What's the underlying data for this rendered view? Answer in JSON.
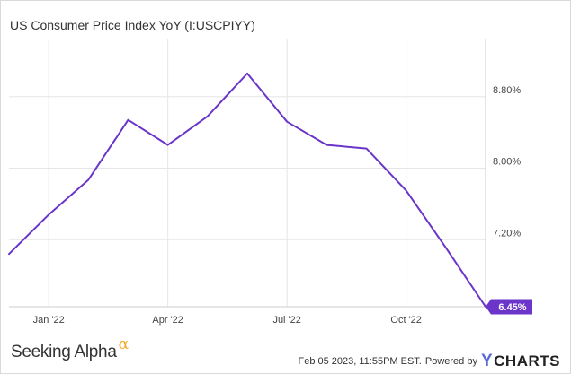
{
  "chart_data": {
    "type": "line",
    "title": "US Consumer Price Index YoY (I:USCPIYY)",
    "x": [
      "2021-12",
      "2022-01",
      "2022-02",
      "2022-03",
      "2022-04",
      "2022-05",
      "2022-06",
      "2022-07",
      "2022-08",
      "2022-09",
      "2022-10",
      "2022-11",
      "2022-12"
    ],
    "x_tick_labels": [
      {
        "x": "2022-01",
        "label": "Jan '22"
      },
      {
        "x": "2022-04",
        "label": "Apr '22"
      },
      {
        "x": "2022-07",
        "label": "Jul '22"
      },
      {
        "x": "2022-10",
        "label": "Oct '22"
      }
    ],
    "series": [
      {
        "values": [
          7.04,
          7.48,
          7.87,
          8.54,
          8.26,
          8.58,
          9.06,
          8.52,
          8.26,
          8.22,
          7.75,
          7.11,
          6.45
        ],
        "color": "#6a35c8",
        "last_value_label": "6.45%"
      }
    ],
    "ylim": [
      6.45,
      9.45
    ],
    "y_ticks": [
      7.2,
      8.0,
      8.8
    ],
    "y_tick_labels": [
      "7.20%",
      "8.00%",
      "8.80%"
    ],
    "y_axis_position": "right",
    "grid": true,
    "gridline_color": "#e6e6e6"
  },
  "footer": {
    "brand": "Seeking Alpha",
    "brand_symbol": "α",
    "brand_symbol_color": "#f5a623",
    "timestamp": "Feb 05 2023, 11:55PM EST.",
    "powered_by": "Powered by",
    "logo_y": "Y",
    "logo_text": "CHARTS"
  }
}
